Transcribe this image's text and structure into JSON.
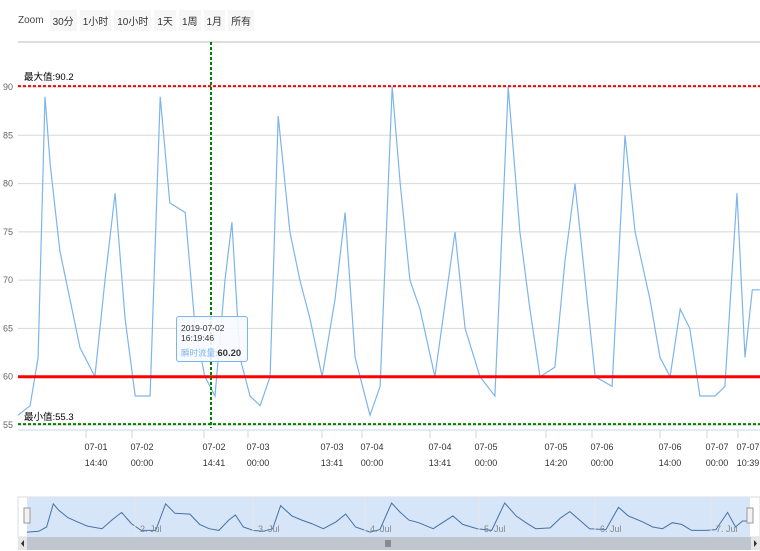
{
  "zoom": {
    "label": "Zoom",
    "buttons": [
      "30分",
      "1小时",
      "10小时",
      "1天",
      "1周",
      "1月",
      "所有"
    ]
  },
  "tooltip": {
    "time": "2019-07-02 16:19:46",
    "series_label": "瞬时流量:",
    "value": "60.20"
  },
  "colors": {
    "series": "#7cb5ec",
    "max_line": "#ff0000",
    "min_line": "#008000",
    "threshold": "#ff0000",
    "crosshair": "#008000",
    "navigator_fill": "#d6e5f7"
  },
  "chart_data": {
    "type": "line",
    "ylim": [
      55,
      90
    ],
    "yticks": [
      55,
      60,
      65,
      70,
      75,
      80,
      85,
      90
    ],
    "grid": true,
    "plot_lines": {
      "max_label": "最大值:90.2",
      "max": 90.2,
      "min_label": "最小值:55.3",
      "min": 55.3,
      "threshold": 60
    },
    "crosshair_time": "2019-07-02 16:19:46",
    "xticks": [
      [
        "07-01",
        "14:40"
      ],
      [
        "07-02",
        "00:00"
      ],
      [
        "07-02",
        "14:41"
      ],
      [
        "07-03",
        "00:00"
      ],
      [
        "07-03",
        "13:41"
      ],
      [
        "07-04",
        "00:00"
      ],
      [
        "07-04",
        "13:41"
      ],
      [
        "07-05",
        "00:00"
      ],
      [
        "07-05",
        "14:20"
      ],
      [
        "07-06",
        "00:00"
      ],
      [
        "07-06",
        "14:00"
      ],
      [
        "07-07",
        "00:00"
      ],
      [
        "07-07",
        "10:39"
      ]
    ],
    "navigator_labels": [
      "2. Jul",
      "3. Jul",
      "4. Jul",
      "5. Jul",
      "6. Jul",
      "7. Jul"
    ],
    "series": [
      {
        "points": [
          [
            "2019-06-30 22:20",
            56
          ],
          [
            "2019-07-01 00:50",
            57
          ],
          [
            "2019-07-01 02:30",
            62
          ],
          [
            "2019-07-01 03:55",
            89
          ],
          [
            "2019-07-01 05:00",
            82
          ],
          [
            "2019-07-01 07:00",
            73
          ],
          [
            "2019-07-01 09:05",
            68
          ],
          [
            "2019-07-01 11:10",
            63
          ],
          [
            "2019-07-01 14:15",
            60
          ],
          [
            "2019-07-01 16:20",
            70
          ],
          [
            "2019-07-01 18:25",
            79
          ],
          [
            "2019-07-01 20:30",
            66
          ],
          [
            "2019-07-01 22:35",
            58
          ],
          [
            "2019-07-02 01:40",
            58
          ],
          [
            "2019-07-02 03:45",
            89
          ],
          [
            "2019-07-02 05:45",
            78
          ],
          [
            "2019-07-02 08:55",
            77
          ],
          [
            "2019-07-02 11:00",
            65
          ],
          [
            "2019-07-02 13:00",
            60
          ],
          [
            "2019-07-02 15:05",
            58
          ],
          [
            "2019-07-02 17:10",
            70
          ],
          [
            "2019-07-02 18:35",
            76
          ],
          [
            "2019-07-02 20:15",
            62
          ],
          [
            "2019-07-02 22:20",
            58
          ],
          [
            "2019-07-03 00:25",
            57
          ],
          [
            "2019-07-03 02:30",
            60
          ],
          [
            "2019-07-03 04:10",
            87
          ],
          [
            "2019-07-03 06:35",
            75
          ],
          [
            "2019-07-03 08:40",
            70
          ],
          [
            "2019-07-03 10:45",
            66
          ],
          [
            "2019-07-03 13:15",
            60
          ],
          [
            "2019-07-03 15:55",
            68
          ],
          [
            "2019-07-03 18:00",
            77
          ],
          [
            "2019-07-03 20:05",
            62
          ],
          [
            "2019-07-03 23:10",
            56
          ],
          [
            "2019-07-04 01:15",
            59
          ],
          [
            "2019-07-04 03:45",
            90
          ],
          [
            "2019-07-04 05:25",
            80
          ],
          [
            "2019-07-04 07:25",
            70
          ],
          [
            "2019-07-04 09:30",
            67
          ],
          [
            "2019-07-04 12:35",
            60
          ],
          [
            "2019-07-04 16:45",
            75
          ],
          [
            "2019-07-04 18:50",
            65
          ],
          [
            "2019-07-04 21:55",
            60
          ],
          [
            "2019-07-05 01:00",
            58
          ],
          [
            "2019-07-05 03:45",
            90
          ],
          [
            "2019-07-05 06:10",
            75
          ],
          [
            "2019-07-05 08:15",
            67
          ],
          [
            "2019-07-05 10:20",
            60
          ],
          [
            "2019-07-05 13:25",
            61
          ],
          [
            "2019-07-05 15:30",
            72
          ],
          [
            "2019-07-05 17:35",
            80
          ],
          [
            "2019-07-05 19:40",
            70
          ],
          [
            "2019-07-05 21:45",
            60
          ],
          [
            "2019-07-06 01:15",
            59
          ],
          [
            "2019-07-06 03:55",
            85
          ],
          [
            "2019-07-06 06:00",
            75
          ],
          [
            "2019-07-06 09:05",
            68
          ],
          [
            "2019-07-06 11:10",
            62
          ],
          [
            "2019-07-06 13:15",
            60
          ],
          [
            "2019-07-06 15:20",
            67
          ],
          [
            "2019-07-06 17:20",
            65
          ],
          [
            "2019-07-06 19:25",
            58
          ],
          [
            "2019-07-06 22:35",
            58
          ],
          [
            "2019-07-07 00:35",
            59
          ],
          [
            "2019-07-07 03:05",
            79
          ],
          [
            "2019-07-07 04:45",
            62
          ],
          [
            "2019-07-07 06:15",
            69
          ],
          [
            "2019-07-07 07:50",
            69
          ]
        ]
      }
    ]
  }
}
